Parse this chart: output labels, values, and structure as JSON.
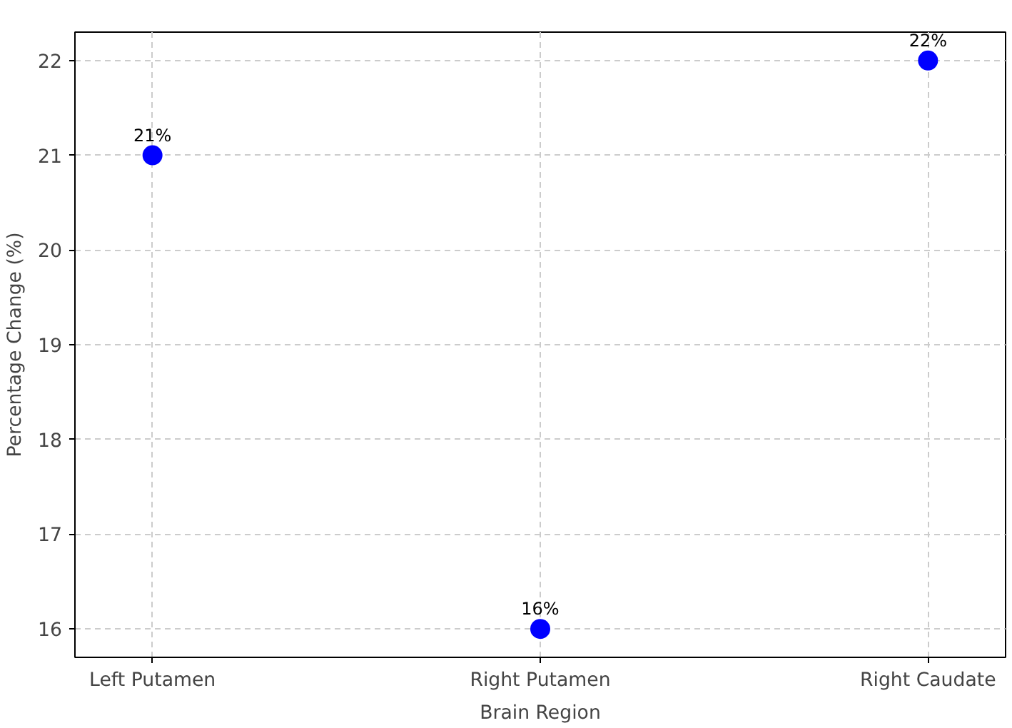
{
  "chart_data": {
    "type": "scatter",
    "xlabel": "Brain Region",
    "ylabel": "Percentage Change (%)",
    "categories": [
      "Left Putamen",
      "Right Putamen",
      "Right Caudate"
    ],
    "values": [
      21,
      16,
      22
    ],
    "color": "#0000ff",
    "value_labels": [
      "21%",
      "16%",
      "22%"
    ],
    "ylim": [
      15.7,
      22.3
    ],
    "yticks": [
      16,
      17,
      18,
      19,
      20,
      21,
      22
    ],
    "grid": true,
    "marker": "circle"
  }
}
